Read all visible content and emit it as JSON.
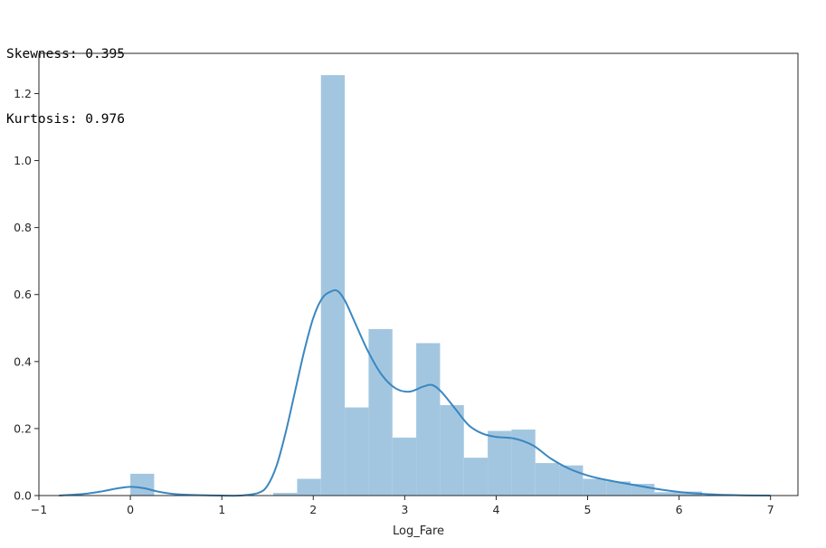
{
  "output": {
    "skewness_line": "Skewness: 0.395",
    "kurtosis_line": "Kurtosis: 0.976"
  },
  "chart_data": {
    "type": "bar",
    "subtype": "histogram-with-kde",
    "xlabel": "Log_Fare",
    "ylabel": "",
    "xlim": [
      -1.0,
      7.3
    ],
    "ylim": [
      0.0,
      1.32
    ],
    "xticks": [
      -1,
      0,
      1,
      2,
      3,
      4,
      5,
      6,
      7
    ],
    "yticks": [
      0.0,
      0.2,
      0.4,
      0.6,
      0.8,
      1.0,
      1.2
    ],
    "bin_width": 0.2605,
    "histogram": {
      "color": "#a3c6e0",
      "bins": [
        {
          "x": 0.0,
          "h": 0.065
        },
        {
          "x": 1.563,
          "h": 0.008
        },
        {
          "x": 1.8235,
          "h": 0.05
        },
        {
          "x": 2.084,
          "h": 1.255
        },
        {
          "x": 2.3445,
          "h": 0.263
        },
        {
          "x": 2.605,
          "h": 0.497
        },
        {
          "x": 2.8655,
          "h": 0.173
        },
        {
          "x": 3.126,
          "h": 0.455
        },
        {
          "x": 3.3865,
          "h": 0.27
        },
        {
          "x": 3.647,
          "h": 0.113
        },
        {
          "x": 3.9075,
          "h": 0.193
        },
        {
          "x": 4.168,
          "h": 0.197
        },
        {
          "x": 4.4285,
          "h": 0.097
        },
        {
          "x": 4.689,
          "h": 0.09
        },
        {
          "x": 4.9495,
          "h": 0.05
        },
        {
          "x": 5.21,
          "h": 0.042
        },
        {
          "x": 5.4705,
          "h": 0.035
        },
        {
          "x": 5.731,
          "h": 0.01
        },
        {
          "x": 5.9915,
          "h": 0.012
        }
      ]
    },
    "kde": {
      "color": "#3a87c0",
      "x": [
        -0.78,
        -0.5,
        -0.3,
        -0.15,
        0.0,
        0.15,
        0.3,
        0.5,
        0.8,
        1.0,
        1.2,
        1.4,
        1.5,
        1.6,
        1.7,
        1.8,
        1.9,
        2.0,
        2.1,
        2.2,
        2.27,
        2.35,
        2.45,
        2.6,
        2.75,
        2.9,
        3.05,
        3.2,
        3.3,
        3.4,
        3.55,
        3.7,
        3.85,
        4.0,
        4.2,
        4.4,
        4.6,
        4.8,
        5.0,
        5.2,
        5.5,
        5.8,
        6.1,
        6.4,
        6.7,
        7.0
      ],
      "y": [
        0.0,
        0.005,
        0.013,
        0.021,
        0.026,
        0.022,
        0.012,
        0.004,
        0.001,
        0.0,
        0.0,
        0.008,
        0.03,
        0.09,
        0.19,
        0.31,
        0.43,
        0.53,
        0.59,
        0.61,
        0.61,
        0.58,
        0.52,
        0.43,
        0.36,
        0.32,
        0.31,
        0.325,
        0.33,
        0.31,
        0.26,
        0.21,
        0.185,
        0.175,
        0.17,
        0.15,
        0.11,
        0.08,
        0.06,
        0.047,
        0.032,
        0.018,
        0.008,
        0.003,
        0.0008,
        0.0
      ]
    }
  }
}
